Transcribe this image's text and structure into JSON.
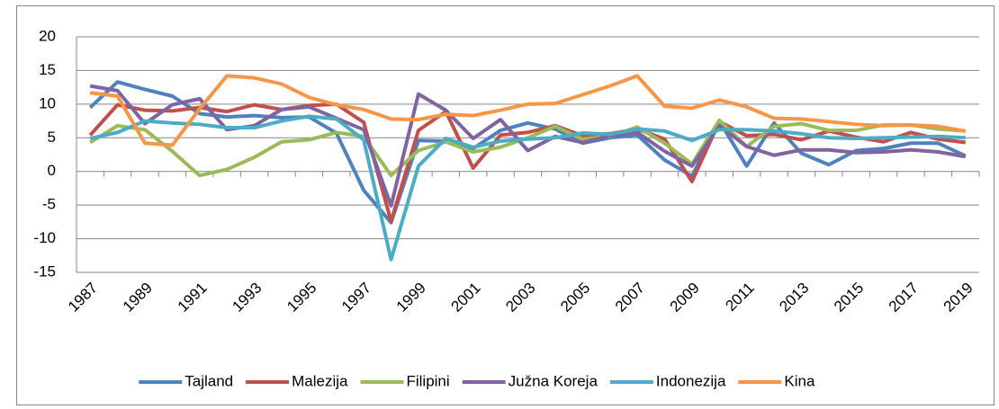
{
  "chart_data": {
    "type": "line",
    "categories": [
      "1987",
      null,
      "1989",
      null,
      "1991",
      null,
      "1993",
      null,
      "1995",
      null,
      "1997",
      null,
      "1999",
      null,
      "2001",
      null,
      "2003",
      null,
      "2005",
      null,
      "2007",
      null,
      "2009",
      null,
      "2011",
      null,
      "2013",
      null,
      "2015",
      null,
      "2017",
      null,
      "2019"
    ],
    "series": [
      {
        "name": "Tajland",
        "color": "#4f81bd",
        "values": [
          9.5,
          13.3,
          12.2,
          11.2,
          8.6,
          8.1,
          8.3,
          8.0,
          8.1,
          5.7,
          -2.8,
          -7.6,
          4.6,
          4.5,
          3.4,
          6.1,
          7.2,
          6.3,
          4.2,
          5.0,
          5.4,
          1.7,
          -0.7,
          7.5,
          0.8,
          7.2,
          2.7,
          1.0,
          3.1,
          3.4,
          4.2,
          4.2,
          2.3
        ]
      },
      {
        "name": "Malezija",
        "color": "#c0504d",
        "values": [
          5.4,
          9.9,
          9.1,
          9.0,
          9.5,
          8.9,
          9.9,
          9.2,
          9.8,
          10.0,
          7.3,
          -7.4,
          6.1,
          8.9,
          0.5,
          5.4,
          5.8,
          6.8,
          5.3,
          5.6,
          6.3,
          4.8,
          -1.5,
          7.4,
          5.3,
          5.5,
          4.7,
          6.0,
          5.1,
          4.4,
          5.8,
          4.8,
          4.3
        ]
      },
      {
        "name": "Filipini",
        "color": "#9bbb59",
        "values": [
          4.3,
          6.8,
          6.2,
          3.0,
          -0.6,
          0.3,
          2.1,
          4.4,
          4.7,
          5.8,
          5.2,
          -0.6,
          3.1,
          4.4,
          2.9,
          3.6,
          5.0,
          6.7,
          4.8,
          5.2,
          6.6,
          4.2,
          1.1,
          7.6,
          3.7,
          6.7,
          7.1,
          6.1,
          6.1,
          6.9,
          6.9,
          6.3,
          6.0
        ]
      },
      {
        "name": "Južna Koreja",
        "color": "#8064a2",
        "values": [
          12.7,
          12.0,
          7.1,
          9.9,
          10.8,
          6.2,
          6.8,
          9.2,
          9.6,
          7.9,
          6.2,
          -5.1,
          11.5,
          9.1,
          4.9,
          7.7,
          3.1,
          5.2,
          4.3,
          5.3,
          5.8,
          3.0,
          0.8,
          6.8,
          3.7,
          2.4,
          3.2,
          3.2,
          2.8,
          2.9,
          3.2,
          2.9,
          2.2
        ]
      },
      {
        "name": "Indonezija",
        "color": "#4bacc6",
        "values": [
          4.9,
          5.8,
          7.5,
          7.2,
          7.0,
          6.5,
          6.5,
          7.5,
          8.2,
          7.8,
          4.7,
          -13.1,
          0.8,
          4.9,
          3.6,
          4.5,
          4.8,
          5.0,
          5.7,
          5.5,
          6.3,
          6.0,
          4.6,
          6.2,
          6.2,
          6.0,
          5.6,
          5.0,
          4.9,
          5.0,
          5.1,
          5.2,
          5.0
        ]
      },
      {
        "name": "Kina",
        "color": "#f79646",
        "values": [
          11.7,
          11.2,
          4.2,
          3.9,
          9.3,
          14.2,
          13.9,
          13.0,
          11.0,
          9.9,
          9.2,
          7.8,
          7.7,
          8.5,
          8.3,
          9.1,
          10.0,
          10.1,
          11.4,
          12.7,
          14.2,
          9.7,
          9.4,
          10.6,
          9.6,
          7.9,
          7.8,
          7.4,
          7.0,
          6.8,
          6.9,
          6.7,
          6.0
        ]
      }
    ],
    "ylim": [
      -15,
      20
    ],
    "yticks": [
      -15,
      -10,
      -5,
      0,
      5,
      10,
      15,
      20
    ],
    "grid": true,
    "legend": "bottom"
  }
}
